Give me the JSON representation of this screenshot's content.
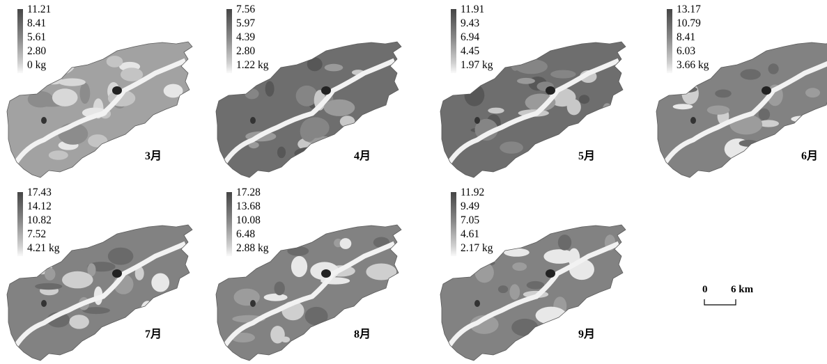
{
  "panels": [
    {
      "month": "3月",
      "legend": [
        "11.21",
        "8.41",
        "5.61",
        "2.80",
        "0 kg"
      ],
      "tone": "light"
    },
    {
      "month": "4月",
      "legend": [
        "7.56",
        "5.97",
        "4.39",
        "2.80",
        "1.22 kg"
      ],
      "tone": "dark"
    },
    {
      "month": "5月",
      "legend": [
        "11.91",
        "9.43",
        "6.94",
        "4.45",
        "1.97 kg"
      ],
      "tone": "dark"
    },
    {
      "month": "6月",
      "legend": [
        "13.17",
        "10.79",
        "8.41",
        "6.03",
        "3.66 kg"
      ],
      "tone": "mid"
    },
    {
      "month": "7月",
      "legend": [
        "17.43",
        "14.12",
        "10.82",
        "7.52",
        "4.21 kg"
      ],
      "tone": "mid"
    },
    {
      "month": "8月",
      "legend": [
        "17.28",
        "13.68",
        "10.08",
        "6.48",
        "2.88 kg"
      ],
      "tone": "mid"
    },
    {
      "month": "9月",
      "legend": [
        "11.92",
        "9.49",
        "7.05",
        "4.61",
        "2.17 kg"
      ],
      "tone": "mid"
    }
  ],
  "scale_bar": {
    "start": "0",
    "end": "6 km"
  },
  "colors": {
    "ramp_high": "#454545",
    "ramp_low": "#fafafa"
  }
}
